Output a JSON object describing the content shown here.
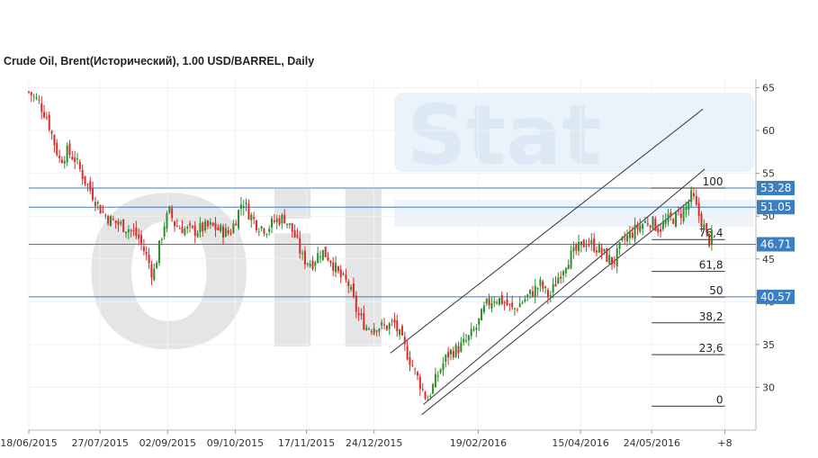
{
  "title": "Crude Oil, Brent(Исторический), 1.00 USD/BARREL, Daily",
  "watermark": {
    "left": "Oil",
    "right": "Stat"
  },
  "colors": {
    "up": "#2e8b2e",
    "down": "#d92b2b",
    "hline": "#3a7fc1",
    "tag_bg": "#3a7fc1",
    "channel": "#333333",
    "fib": "#333333"
  },
  "chart_data": {
    "type": "candlestick",
    "ylim": [
      25,
      66
    ],
    "y_ticks": [
      30,
      35,
      40,
      45,
      50,
      55,
      60,
      65
    ],
    "x_tick_labels": [
      {
        "label": "18/06/2015",
        "day": 0
      },
      {
        "label": "27/07/2015",
        "day": 39
      },
      {
        "label": "02/09/2015",
        "day": 76
      },
      {
        "label": "09/10/2015",
        "day": 113
      },
      {
        "label": "17/11/2015",
        "day": 152
      },
      {
        "label": "24/12/2015",
        "day": 189
      },
      {
        "label": "19/02/2016",
        "day": 246
      },
      {
        "label": "15/04/2016",
        "day": 302
      },
      {
        "label": "24/05/2016",
        "day": 341
      },
      {
        "label": "+8",
        "day": 381
      }
    ],
    "series_close": [
      [
        0,
        64.5
      ],
      [
        5,
        63.5
      ],
      [
        10,
        61.5
      ],
      [
        14,
        58.5
      ],
      [
        17,
        56.5
      ],
      [
        21,
        57.5
      ],
      [
        25,
        56.8
      ],
      [
        30,
        54.5
      ],
      [
        35,
        52.5
      ],
      [
        40,
        50.5
      ],
      [
        45,
        49.5
      ],
      [
        50,
        49.0
      ],
      [
        55,
        48.5
      ],
      [
        60,
        47.5
      ],
      [
        65,
        45.0
      ],
      [
        68,
        43.0
      ],
      [
        71,
        46.0
      ],
      [
        74,
        49.0
      ],
      [
        77,
        50.5
      ],
      [
        80,
        49.0
      ],
      [
        85,
        48.5
      ],
      [
        90,
        48.2
      ],
      [
        95,
        48.6
      ],
      [
        100,
        48.8
      ],
      [
        105,
        48.3
      ],
      [
        110,
        48.0
      ],
      [
        114,
        50.0
      ],
      [
        117,
        52.0
      ],
      [
        120,
        50.5
      ],
      [
        125,
        49.0
      ],
      [
        130,
        48.5
      ],
      [
        135,
        49.5
      ],
      [
        140,
        49.8
      ],
      [
        145,
        48.0
      ],
      [
        150,
        45.0
      ],
      [
        155,
        44.5
      ],
      [
        160,
        46.0
      ],
      [
        165,
        45.0
      ],
      [
        170,
        43.0
      ],
      [
        175,
        42.0
      ],
      [
        180,
        38.5
      ],
      [
        185,
        37.0
      ],
      [
        190,
        37.2
      ],
      [
        195,
        37.0
      ],
      [
        200,
        37.5
      ],
      [
        205,
        35.0
      ],
      [
        210,
        32.5
      ],
      [
        215,
        30.0
      ],
      [
        218,
        28.5
      ],
      [
        222,
        30.5
      ],
      [
        226,
        32.5
      ],
      [
        230,
        34.0
      ],
      [
        235,
        34.5
      ],
      [
        240,
        35.5
      ],
      [
        245,
        37.0
      ],
      [
        250,
        39.5
      ],
      [
        255,
        40.5
      ],
      [
        260,
        40.0
      ],
      [
        265,
        39.0
      ],
      [
        270,
        40.0
      ],
      [
        275,
        41.0
      ],
      [
        280,
        42.0
      ],
      [
        285,
        40.5
      ],
      [
        290,
        43.0
      ],
      [
        295,
        45.0
      ],
      [
        300,
        46.0
      ],
      [
        305,
        47.0
      ],
      [
        310,
        46.5
      ],
      [
        315,
        45.5
      ],
      [
        320,
        44.5
      ],
      [
        325,
        47.0
      ],
      [
        330,
        48.0
      ],
      [
        335,
        49.0
      ],
      [
        340,
        49.5
      ],
      [
        345,
        48.5
      ],
      [
        350,
        49.5
      ],
      [
        355,
        50.0
      ],
      [
        360,
        51.0
      ],
      [
        363,
        52.5
      ],
      [
        366,
        50.5
      ],
      [
        369,
        49.0
      ],
      [
        372,
        47.0
      ],
      [
        375,
        48.0
      ]
    ],
    "horizontal_lines": [
      {
        "value": 53.28,
        "tag": "53.28"
      },
      {
        "value": 51.05,
        "tag": "51.05"
      },
      {
        "value": 46.71,
        "tag": "46.71"
      },
      {
        "value": 40.57,
        "tag": "40.57"
      }
    ],
    "fibonacci": {
      "start_day": 341,
      "end_day": 381,
      "high": 53.28,
      "low": 27.8,
      "levels": [
        {
          "ratio": 100,
          "label": "100"
        },
        {
          "ratio": 76.4,
          "label": "76,4"
        },
        {
          "ratio": 61.8,
          "label": "61,8"
        },
        {
          "ratio": 50,
          "label": "50"
        },
        {
          "ratio": 38.2,
          "label": "38,2"
        },
        {
          "ratio": 23.6,
          "label": "23,6"
        },
        {
          "ratio": 0,
          "label": "0"
        }
      ]
    },
    "channel_lines": [
      {
        "start": [
          216,
          28.0
        ],
        "end": [
          370,
          55.5
        ]
      },
      {
        "start": [
          198,
          34.0
        ],
        "end": [
          369,
          62.5
        ]
      },
      {
        "start": [
          215,
          26.8
        ],
        "end": [
          363,
          52.0
        ]
      }
    ]
  }
}
